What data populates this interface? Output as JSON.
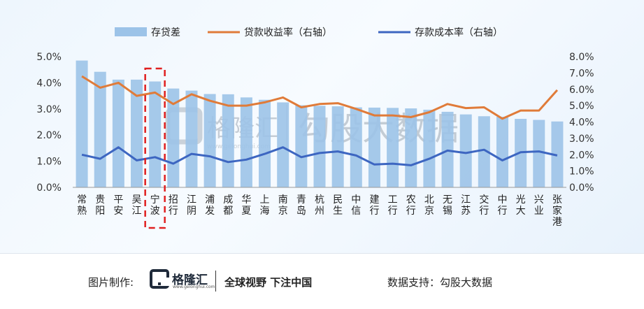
{
  "chart_data": {
    "type": "bar",
    "categories": [
      "常熟",
      "贵阳",
      "平安",
      "吴江",
      "宁波",
      "招行",
      "江阴",
      "浦发",
      "成都",
      "华夏",
      "上海",
      "南京",
      "青岛",
      "杭州",
      "民生",
      "中信",
      "建行",
      "工行",
      "农行",
      "北京",
      "无锡",
      "江苏",
      "交行",
      "中行",
      "光大",
      "兴业",
      "张家港"
    ],
    "series": [
      {
        "name": "存贷差",
        "axis": "left",
        "type": "bar",
        "values": [
          4.85,
          4.42,
          4.12,
          4.12,
          4.05,
          3.78,
          3.7,
          3.57,
          3.56,
          3.44,
          3.35,
          3.25,
          3.14,
          3.12,
          3.1,
          3.06,
          3.05,
          3.04,
          3.02,
          2.97,
          2.89,
          2.79,
          2.72,
          2.7,
          2.62,
          2.58,
          2.52
        ]
      },
      {
        "name": "贷款收益率（右轴）",
        "axis": "right",
        "type": "line",
        "color": "#E07B39",
        "values": [
          6.8,
          6.1,
          6.4,
          5.6,
          5.8,
          5.1,
          5.7,
          5.3,
          5.0,
          5.0,
          5.2,
          5.5,
          4.9,
          5.1,
          5.15,
          4.8,
          4.4,
          4.4,
          4.3,
          4.6,
          5.1,
          4.85,
          4.9,
          4.2,
          4.7,
          4.7,
          5.95
        ]
      },
      {
        "name": "存款成本率（右轴）",
        "axis": "right",
        "type": "line",
        "color": "#3D66C1",
        "values": [
          2.0,
          1.75,
          2.45,
          1.65,
          1.85,
          1.45,
          2.05,
          1.9,
          1.55,
          1.7,
          2.05,
          2.45,
          1.85,
          2.1,
          2.2,
          1.95,
          1.4,
          1.45,
          1.35,
          1.75,
          2.25,
          2.1,
          2.3,
          1.65,
          2.15,
          2.2,
          1.95
        ]
      }
    ],
    "y_left": {
      "ticks": [
        "0.0%",
        "1.0%",
        "2.0%",
        "3.0%",
        "4.0%",
        "5.0%"
      ],
      "range": [
        0,
        5
      ]
    },
    "y_right": {
      "ticks": [
        "0.0%",
        "1.0%",
        "2.0%",
        "3.0%",
        "4.0%",
        "5.0%",
        "6.0%",
        "7.0%",
        "8.0%"
      ],
      "range": [
        0,
        8
      ]
    },
    "highlight_category": "宁波",
    "legend_placement": "top",
    "grid": false,
    "colors": {
      "bar": "#9CC3E8",
      "highlight_box": "#E02020"
    }
  },
  "watermark": {
    "brand": "格隆汇",
    "url": "www.gelonghui.com",
    "partner": "勾股大数据"
  },
  "footer": {
    "made_by_label": "图片制作:",
    "logo_name": "格隆汇",
    "logo_url": "www.gelonghui.com",
    "slogan": "全球视野 下注中国",
    "data_support": "数据支持：勾股大数据"
  }
}
